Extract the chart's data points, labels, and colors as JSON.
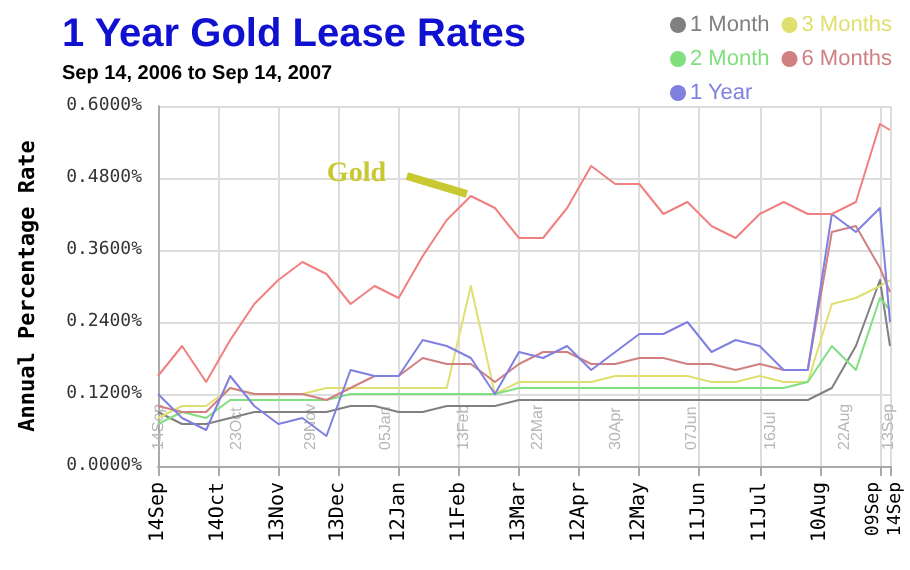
{
  "chart_data": {
    "type": "line",
    "title": "1 Year Gold Lease Rates",
    "subtitle": "Sep 14, 2006 to Sep 14, 2007",
    "ylabel": "Annual Percentage Rate",
    "x": [
      "2006-09-14",
      "2006-09-26",
      "2006-10-08",
      "2006-10-20",
      "2006-11-01",
      "2006-11-13",
      "2006-11-25",
      "2006-12-07",
      "2006-12-19",
      "2006-12-31",
      "2007-01-12",
      "2007-01-24",
      "2007-02-05",
      "2007-02-17",
      "2007-03-01",
      "2007-03-13",
      "2007-03-25",
      "2007-04-06",
      "2007-04-18",
      "2007-04-30",
      "2007-05-12",
      "2007-05-24",
      "2007-06-05",
      "2007-06-17",
      "2007-06-29",
      "2007-07-11",
      "2007-07-23",
      "2007-08-04",
      "2007-08-16",
      "2007-08-28",
      "2007-09-09",
      "2007-09-14"
    ],
    "series": [
      {
        "name": "1 Month",
        "color": "#808080",
        "values": [
          0.09,
          0.07,
          0.07,
          0.08,
          0.09,
          0.09,
          0.09,
          0.09,
          0.1,
          0.1,
          0.09,
          0.09,
          0.1,
          0.1,
          0.1,
          0.11,
          0.11,
          0.11,
          0.11,
          0.11,
          0.11,
          0.11,
          0.11,
          0.11,
          0.11,
          0.11,
          0.11,
          0.11,
          0.13,
          0.2,
          0.31,
          0.2
        ]
      },
      {
        "name": "3 Months",
        "color": "#e0e070",
        "values": [
          0.08,
          0.1,
          0.1,
          0.13,
          0.12,
          0.12,
          0.12,
          0.13,
          0.13,
          0.13,
          0.13,
          0.13,
          0.13,
          0.3,
          0.12,
          0.14,
          0.14,
          0.14,
          0.14,
          0.15,
          0.15,
          0.15,
          0.15,
          0.14,
          0.14,
          0.15,
          0.14,
          0.14,
          0.27,
          0.28,
          0.3,
          0.31
        ]
      },
      {
        "name": "2 Month",
        "color": "#80e080",
        "values": [
          0.07,
          0.09,
          0.08,
          0.11,
          0.11,
          0.11,
          0.11,
          0.11,
          0.12,
          0.12,
          0.12,
          0.12,
          0.12,
          0.12,
          0.12,
          0.13,
          0.13,
          0.13,
          0.13,
          0.13,
          0.13,
          0.13,
          0.13,
          0.13,
          0.13,
          0.13,
          0.13,
          0.14,
          0.2,
          0.16,
          0.28,
          0.26
        ]
      },
      {
        "name": "6 Months",
        "color": "#d08080",
        "values": [
          0.1,
          0.09,
          0.09,
          0.13,
          0.12,
          0.12,
          0.12,
          0.11,
          0.13,
          0.15,
          0.15,
          0.18,
          0.17,
          0.17,
          0.14,
          0.17,
          0.19,
          0.19,
          0.17,
          0.17,
          0.18,
          0.18,
          0.17,
          0.17,
          0.16,
          0.17,
          0.16,
          0.16,
          0.39,
          0.4,
          0.33,
          0.29
        ]
      },
      {
        "name": "1 Year",
        "color": "#8080e0",
        "values": [
          0.12,
          0.08,
          0.06,
          0.15,
          0.1,
          0.07,
          0.08,
          0.05,
          0.16,
          0.15,
          0.15,
          0.21,
          0.2,
          0.18,
          0.12,
          0.19,
          0.18,
          0.2,
          0.16,
          0.19,
          0.22,
          0.22,
          0.24,
          0.19,
          0.21,
          0.2,
          0.16,
          0.16,
          0.42,
          0.39,
          0.43,
          0.24
        ]
      },
      {
        "color": "#f08080",
        "values": [
          0.15,
          0.2,
          0.14,
          0.21,
          0.27,
          0.31,
          0.34,
          0.32,
          0.27,
          0.3,
          0.28,
          0.35,
          0.41,
          0.45,
          0.43,
          0.38,
          0.38,
          0.43,
          0.5,
          0.47,
          0.47,
          0.42,
          0.44,
          0.4,
          0.38,
          0.42,
          0.44,
          0.42,
          0.42,
          0.44,
          0.57,
          0.56
        ]
      }
    ],
    "xlim": [
      "2006-09-14",
      "2007-09-14"
    ],
    "xticks": [
      {
        "value": "2006-09-14",
        "label": "14Sep"
      },
      {
        "value": "2006-10-14",
        "label": "14Oct"
      },
      {
        "value": "2006-11-13",
        "label": "13Nov"
      },
      {
        "value": "2006-12-13",
        "label": "13Dec"
      },
      {
        "value": "2007-01-12",
        "label": "12Jan"
      },
      {
        "value": "2007-02-11",
        "label": "11Feb"
      },
      {
        "value": "2007-03-13",
        "label": "13Mar"
      },
      {
        "value": "2007-04-12",
        "label": "12Apr"
      },
      {
        "value": "2007-05-12",
        "label": "12May"
      },
      {
        "value": "2007-06-11",
        "label": "11Jun"
      },
      {
        "value": "2007-07-11",
        "label": "11Jul"
      },
      {
        "value": "2007-08-10",
        "label": "10Aug"
      },
      {
        "value": "2007-09-09",
        "label": "09Sep"
      },
      {
        "value": "2007-09-14",
        "label": "14Sep"
      }
    ],
    "x2lim": [
      "2006-09-14",
      "2007-09-14"
    ],
    "x2ticks": [
      {
        "value": "2006-09-14",
        "label": "14Sep"
      },
      {
        "value": "2006-10-23",
        "label": "23Oct"
      },
      {
        "value": "2006-11-29",
        "label": "29Nov"
      },
      {
        "value": "2007-01-05",
        "label": "05Jan"
      },
      {
        "value": "2007-02-13",
        "label": "13Feb"
      },
      {
        "value": "2007-03-22",
        "label": "22Mar"
      },
      {
        "value": "2007-04-30",
        "label": "30Apr"
      },
      {
        "value": "2007-06-07",
        "label": "07Jun"
      },
      {
        "value": "2007-07-16",
        "label": "16Jul"
      },
      {
        "value": "2007-08-22",
        "label": "22Aug"
      },
      {
        "value": "2007-09-13",
        "label": "13Sep"
      }
    ],
    "ylim": [
      0,
      0.6
    ],
    "yticks": [
      {
        "value": 0,
        "label": "0.0000%"
      },
      {
        "value": 0.12,
        "label": "0.1200%"
      },
      {
        "value": 0.24,
        "label": "0.2400%"
      },
      {
        "value": 0.36,
        "label": "0.3600%"
      },
      {
        "value": 0.48,
        "label": "0.4800%"
      },
      {
        "value": 0.6,
        "label": "0.6000%"
      }
    ],
    "annotations": [
      {
        "text": "Gold",
        "x": "2007-02-17",
        "y": 0.45
      }
    ],
    "grid": true,
    "legend": "top right",
    "marker": "none",
    "line_style": "solid"
  }
}
